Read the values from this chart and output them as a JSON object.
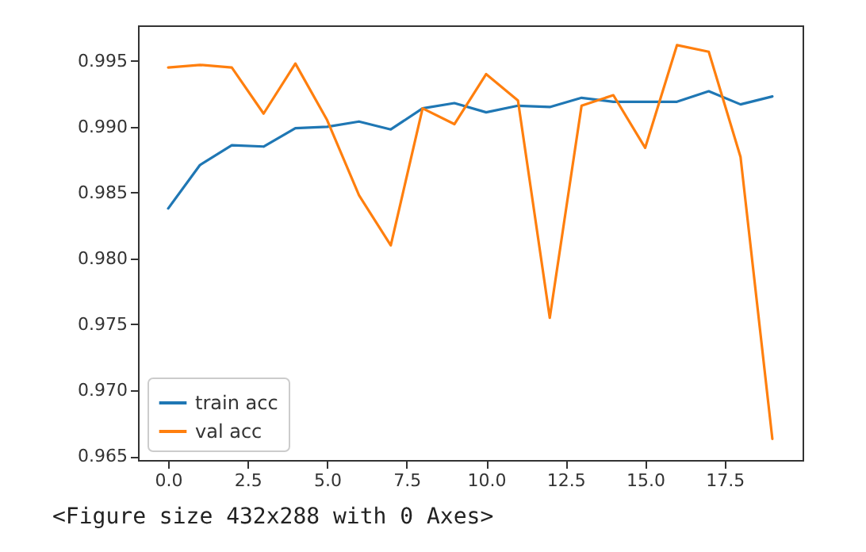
{
  "chart_data": {
    "type": "line",
    "x": [
      0,
      1,
      2,
      3,
      4,
      5,
      6,
      7,
      8,
      9,
      10,
      11,
      12,
      13,
      14,
      15,
      16,
      17,
      18,
      19
    ],
    "series": [
      {
        "name": "train acc",
        "color": "#1f77b4",
        "values": [
          0.9838,
          0.9871,
          0.9886,
          0.9885,
          0.9899,
          0.99,
          0.9904,
          0.9898,
          0.9914,
          0.9918,
          0.9911,
          0.9916,
          0.9915,
          0.9922,
          0.9919,
          0.9919,
          0.9919,
          0.9927,
          0.9917,
          0.9923
        ]
      },
      {
        "name": "val acc",
        "color": "#ff7f0e",
        "values": [
          0.9945,
          0.9947,
          0.9945,
          0.991,
          0.9948,
          0.9905,
          0.9848,
          0.981,
          0.9914,
          0.9902,
          0.994,
          0.992,
          0.9755,
          0.9916,
          0.9924,
          0.9884,
          0.9962,
          0.9957,
          0.9877,
          0.9663
        ]
      }
    ],
    "xlim": [
      -0.95,
      19.95
    ],
    "xticks": [
      {
        "value": 0,
        "label": "0.0"
      },
      {
        "value": 2.5,
        "label": "2.5"
      },
      {
        "value": 5,
        "label": "5.0"
      },
      {
        "value": 7.5,
        "label": "7.5"
      },
      {
        "value": 10,
        "label": "10.0"
      },
      {
        "value": 12.5,
        "label": "12.5"
      },
      {
        "value": 15,
        "label": "15.0"
      },
      {
        "value": 17.5,
        "label": "17.5"
      }
    ],
    "ylim": [
      0.9647,
      0.9977
    ],
    "yticks": [
      0.965,
      {
        "value": 0.97,
        "label": "0.970"
      },
      0.975,
      {
        "value": 0.98,
        "label": "0.980"
      },
      0.985,
      {
        "value": 0.99,
        "label": "0.990"
      },
      0.995
    ],
    "legend": "bottom left",
    "annotations": [
      "<Figure size 432x288 with 0 Axes>"
    ]
  }
}
